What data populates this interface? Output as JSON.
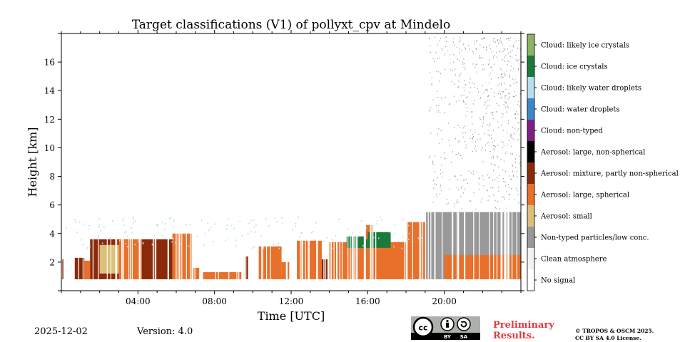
{
  "chart_data": {
    "type": "heatmap",
    "title": "Target classifications (V1) of pollyxt_cpv at Mindelo",
    "xlabel": "Time [UTC]",
    "ylabel": "Height [km]",
    "xlim": [
      0,
      24
    ],
    "ylim": [
      0,
      18
    ],
    "xticks": [
      {
        "value": 4,
        "label": "04:00"
      },
      {
        "value": 8,
        "label": "08:00"
      },
      {
        "value": 12,
        "label": "12:00"
      },
      {
        "value": 16,
        "label": "16:00"
      },
      {
        "value": 20,
        "label": "20:00"
      }
    ],
    "yticks": [
      {
        "value": 2,
        "label": "2"
      },
      {
        "value": 4,
        "label": "4"
      },
      {
        "value": 6,
        "label": "6"
      },
      {
        "value": 8,
        "label": "8"
      },
      {
        "value": 10,
        "label": "10"
      },
      {
        "value": 12,
        "label": "12"
      },
      {
        "value": 14,
        "label": "14"
      },
      {
        "value": 16,
        "label": "16"
      }
    ],
    "classes": [
      {
        "label": "Cloud: likely ice crystals",
        "color": "#8cb463"
      },
      {
        "label": "Cloud: ice crystals",
        "color": "#1a7a3a"
      },
      {
        "label": "Cloud: likely water droplets",
        "color": "#b8dcf0"
      },
      {
        "label": "Cloud: water droplets",
        "color": "#3b88c8"
      },
      {
        "label": "Cloud: non-typed",
        "color": "#7e1f85"
      },
      {
        "label": "Aerosol: large, non-spherical",
        "color": "#000000"
      },
      {
        "label": "Aerosol: mixture, partly non-spherical",
        "color": "#8a2a0a"
      },
      {
        "label": "Aerosol: large, spherical",
        "color": "#e8702a"
      },
      {
        "label": "Aerosol: small",
        "color": "#dcc07a"
      },
      {
        "label": "Non-typed particles/low conc.",
        "color": "#999999"
      },
      {
        "label": "Clean atmosphere",
        "color": "#f2f2f2"
      },
      {
        "label": "No signal",
        "color": "#ffffff"
      }
    ],
    "segments": [
      {
        "t0": 0.05,
        "t1": 0.2,
        "h0": 0.8,
        "h1": 2.2,
        "cls": "Aerosol: mixture, partly non-spherical"
      },
      {
        "t0": 0.7,
        "t1": 1.2,
        "h0": 0.8,
        "h1": 2.3,
        "cls": "Aerosol: mixture, partly non-spherical"
      },
      {
        "t0": 1.2,
        "t1": 1.5,
        "h0": 0.8,
        "h1": 2.1,
        "cls": "Aerosol: large, spherical"
      },
      {
        "t0": 1.5,
        "t1": 3.6,
        "h0": 0.8,
        "h1": 3.6,
        "cls": "Aerosol: mixture, partly non-spherical"
      },
      {
        "t0": 2.0,
        "t1": 3.0,
        "h0": 1.2,
        "h1": 3.2,
        "cls": "Aerosol: small"
      },
      {
        "t0": 3.0,
        "t1": 4.2,
        "h0": 0.8,
        "h1": 3.6,
        "cls": "Aerosol: large, spherical"
      },
      {
        "t0": 4.2,
        "t1": 5.8,
        "h0": 0.8,
        "h1": 3.6,
        "cls": "Aerosol: mixture, partly non-spherical"
      },
      {
        "t0": 5.8,
        "t1": 6.8,
        "h0": 0.8,
        "h1": 4.0,
        "cls": "Aerosol: large, spherical"
      },
      {
        "t0": 6.9,
        "t1": 7.2,
        "h0": 0.8,
        "h1": 1.6,
        "cls": "Aerosol: large, spherical"
      },
      {
        "t0": 7.4,
        "t1": 9.4,
        "h0": 0.8,
        "h1": 1.3,
        "cls": "Aerosol: large, spherical"
      },
      {
        "t0": 9.6,
        "t1": 9.75,
        "h0": 0.8,
        "h1": 2.4,
        "cls": "Aerosol: mixture, partly non-spherical"
      },
      {
        "t0": 10.3,
        "t1": 11.5,
        "h0": 0.8,
        "h1": 3.1,
        "cls": "Aerosol: large, spherical"
      },
      {
        "t0": 11.5,
        "t1": 11.9,
        "h0": 0.8,
        "h1": 2.0,
        "cls": "Aerosol: large, spherical"
      },
      {
        "t0": 12.3,
        "t1": 13.6,
        "h0": 0.8,
        "h1": 3.5,
        "cls": "Aerosol: large, spherical"
      },
      {
        "t0": 13.6,
        "t1": 13.9,
        "h0": 0.8,
        "h1": 2.2,
        "cls": "Aerosol: mixture, partly non-spherical"
      },
      {
        "t0": 14.0,
        "t1": 19.0,
        "h0": 0.8,
        "h1": 3.4,
        "cls": "Aerosol: large, spherical"
      },
      {
        "t0": 14.9,
        "t1": 16.0,
        "h0": 3.0,
        "h1": 3.8,
        "cls": "Cloud: ice crystals"
      },
      {
        "t0": 15.9,
        "t1": 16.3,
        "h0": 3.6,
        "h1": 4.6,
        "cls": "Aerosol: large, spherical"
      },
      {
        "t0": 16.0,
        "t1": 17.2,
        "h0": 3.0,
        "h1": 4.1,
        "cls": "Cloud: ice crystals"
      },
      {
        "t0": 18.0,
        "t1": 19.0,
        "h0": 3.4,
        "h1": 4.8,
        "cls": "Aerosol: large, spherical"
      },
      {
        "t0": 19.0,
        "t1": 24.0,
        "h0": 0.8,
        "h1": 5.5,
        "cls": "Non-typed particles/low conc."
      },
      {
        "t0": 20.0,
        "t1": 24.0,
        "h0": 0.8,
        "h1": 2.5,
        "cls": "Aerosol: large, spherical"
      },
      {
        "t0": 19.2,
        "t1": 24.0,
        "h0": 5.5,
        "h1": 17.8,
        "cls": "Non-typed particles/low conc.",
        "sparse": true
      }
    ]
  },
  "footer": {
    "date": "2025-12-02",
    "version": "Version: 4.0",
    "cc_badge": {
      "cc": "cc",
      "by": "BY",
      "sa": "SA"
    },
    "preliminary": "Preliminary Results.",
    "license_line1": "© TROPOS & OSCM 2025.",
    "license_line2": "CC BY SA 4.0 License."
  },
  "icons": [
    "cc-icon",
    "by-icon",
    "sa-icon"
  ]
}
